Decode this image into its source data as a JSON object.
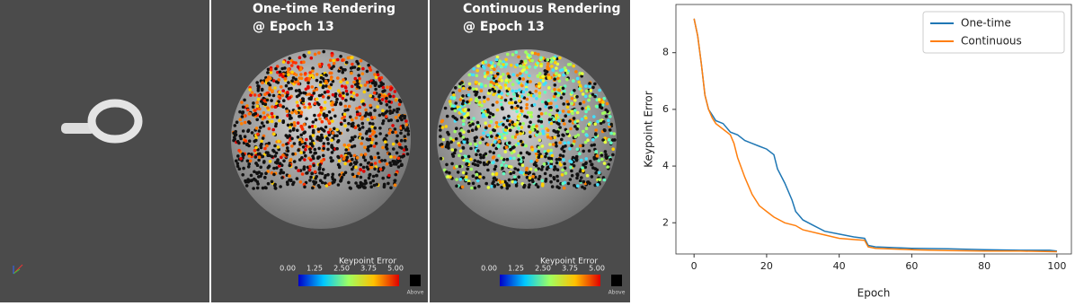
{
  "panels": [
    {
      "title": [
        "One-time Rendering",
        "@ Epoch 13"
      ],
      "colorbar": {
        "label": "Keypoint Error",
        "ticks": [
          "0.00",
          "1.25",
          "2.50",
          "3.75",
          "5.00"
        ],
        "above": "Above"
      }
    },
    {
      "title": [
        "Continuous Rendering",
        "@ Epoch 13"
      ],
      "colorbar": {
        "label": "Keypoint Error",
        "ticks": [
          "0.00",
          "1.25",
          "2.50",
          "3.75",
          "5.00"
        ],
        "above": "Above"
      }
    }
  ],
  "chart_data": {
    "type": "line",
    "xlabel": "Epoch",
    "ylabel": "Keypoint Error",
    "xlim": [
      -5,
      104
    ],
    "ylim": [
      0.9,
      9.7
    ],
    "xticks": [
      0,
      20,
      40,
      60,
      80,
      100
    ],
    "yticks": [
      2,
      4,
      6,
      8
    ],
    "legend": "upper right",
    "series": [
      {
        "name": "One-time",
        "color": "#1f77b4",
        "x": [
          0,
          1,
          2,
          3,
          4,
          5,
          6,
          8,
          10,
          12,
          14,
          16,
          18,
          20,
          22,
          23,
          25,
          27,
          28,
          30,
          33,
          36,
          40,
          44,
          47,
          48,
          50,
          60,
          70,
          80,
          90,
          98,
          100
        ],
        "values": [
          9.2,
          8.6,
          7.6,
          6.5,
          6.0,
          5.8,
          5.6,
          5.5,
          5.2,
          5.1,
          4.9,
          4.8,
          4.7,
          4.6,
          4.4,
          3.9,
          3.4,
          2.8,
          2.4,
          2.1,
          1.9,
          1.7,
          1.6,
          1.5,
          1.45,
          1.2,
          1.15,
          1.1,
          1.08,
          1.05,
          1.03,
          1.03,
          1.0
        ]
      },
      {
        "name": "Continuous",
        "color": "#ff7f0e",
        "x": [
          0,
          1,
          2,
          3,
          4,
          5,
          6,
          8,
          10,
          11,
          12,
          14,
          16,
          18,
          20,
          22,
          25,
          28,
          30,
          35,
          40,
          45,
          47,
          48,
          50,
          60,
          70,
          80,
          90,
          100
        ],
        "values": [
          9.2,
          8.6,
          7.6,
          6.5,
          6.0,
          5.7,
          5.5,
          5.3,
          5.1,
          4.8,
          4.3,
          3.6,
          3.0,
          2.6,
          2.4,
          2.2,
          2.0,
          1.9,
          1.75,
          1.6,
          1.45,
          1.4,
          1.38,
          1.15,
          1.1,
          1.05,
          1.02,
          1.0,
          1.0,
          0.98
        ]
      }
    ]
  }
}
